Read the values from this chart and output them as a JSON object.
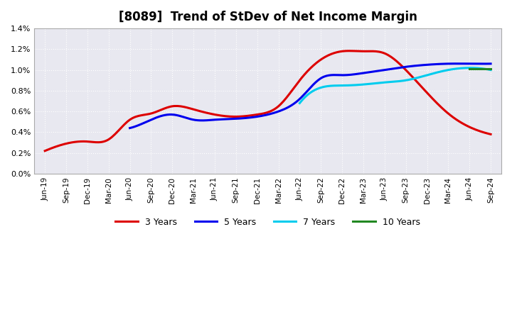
{
  "title": "[8089]  Trend of StDev of Net Income Margin",
  "title_fontsize": 12,
  "background_color": "#ffffff",
  "plot_bg_color": "#e8e8f0",
  "ylim": [
    0.0,
    0.014
  ],
  "yticks": [
    0.0,
    0.002,
    0.004,
    0.006,
    0.008,
    0.01,
    0.012,
    0.014
  ],
  "x_labels": [
    "Jun-19",
    "Sep-19",
    "Dec-19",
    "Mar-20",
    "Jun-20",
    "Sep-20",
    "Dec-20",
    "Mar-21",
    "Jun-21",
    "Sep-21",
    "Dec-21",
    "Mar-22",
    "Jun-22",
    "Sep-22",
    "Dec-22",
    "Mar-23",
    "Jun-23",
    "Sep-23",
    "Dec-23",
    "Mar-24",
    "Jun-24",
    "Sep-24"
  ],
  "series": {
    "3 Years": {
      "color": "#dd0000",
      "linewidth": 2.2,
      "values": [
        0.0022,
        0.0029,
        0.0031,
        0.0033,
        0.0052,
        0.0058,
        0.0065,
        0.0062,
        0.0057,
        0.0055,
        0.0057,
        0.0065,
        0.009,
        0.011,
        0.0118,
        0.0118,
        0.0116,
        0.01,
        0.0078,
        0.0058,
        0.0045,
        0.0038
      ]
    },
    "5 Years": {
      "color": "#0000ee",
      "linewidth": 2.2,
      "values": [
        null,
        null,
        null,
        null,
        0.0044,
        0.0052,
        0.0057,
        0.0052,
        0.0052,
        0.0053,
        0.0055,
        0.006,
        0.0072,
        0.0092,
        0.0095,
        0.0097,
        0.01,
        0.0103,
        0.0105,
        0.0106,
        0.0106,
        0.0106
      ]
    },
    "7 Years": {
      "color": "#00ccee",
      "linewidth": 2.2,
      "values": [
        null,
        null,
        null,
        null,
        null,
        null,
        null,
        null,
        null,
        null,
        null,
        null,
        0.0068,
        0.0083,
        0.0085,
        0.0086,
        0.0088,
        0.009,
        0.0095,
        0.01,
        0.0102,
        0.01
      ]
    },
    "10 Years": {
      "color": "#228822",
      "linewidth": 2.2,
      "values": [
        null,
        null,
        null,
        null,
        null,
        null,
        null,
        null,
        null,
        null,
        null,
        null,
        null,
        null,
        null,
        null,
        null,
        null,
        null,
        null,
        0.0101,
        0.0101
      ]
    }
  },
  "legend_ncol": 4,
  "grid_color": "#ffffff",
  "grid_linewidth": 0.8,
  "grid_linestyle": ":"
}
